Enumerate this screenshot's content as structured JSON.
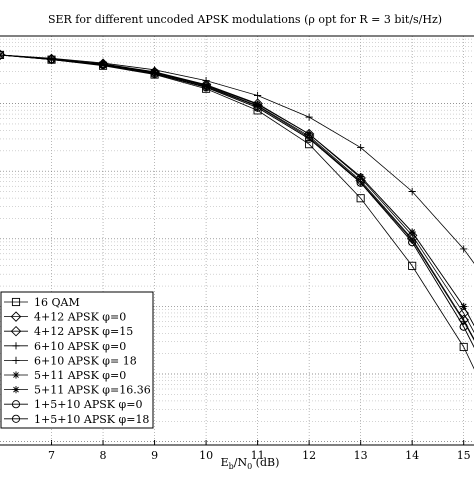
{
  "chart_data": {
    "type": "line",
    "title": "SER for different uncoded APSK modulations (ρ opt for R = 3 bit/s/Hz)",
    "xlabel_main": "E",
    "xlabel_sub1": "b",
    "xlabel_mid": "/N",
    "xlabel_sub2": "0",
    "xlabel_unit": " (dB)",
    "xlim": [
      6,
      15.2
    ],
    "ylim": [
      -6.05,
      0
    ],
    "y_scale": "log",
    "x_ticks": [
      7,
      8,
      9,
      10,
      11,
      12,
      13,
      14,
      15
    ],
    "x_tick_labels": [
      "7",
      "8",
      "9",
      "10",
      "11",
      "12",
      "13",
      "14",
      "15"
    ],
    "grid": true,
    "legend_position": "bottom-left",
    "x": [
      6,
      7,
      8,
      9,
      10,
      11,
      12,
      13,
      14,
      15,
      16
    ],
    "series": [
      {
        "name": "16 QAM",
        "marker": "square",
        "y": [
          -0.28,
          -0.35,
          -0.44,
          -0.57,
          -0.78,
          -1.1,
          -1.6,
          -2.4,
          -3.4,
          -4.6,
          -6.2
        ]
      },
      {
        "name": "4+12 APSK φ=0",
        "marker": "diamond",
        "y": [
          -0.28,
          -0.34,
          -0.41,
          -0.53,
          -0.72,
          -1.0,
          -1.45,
          -2.1,
          -2.95,
          -4.1,
          -5.5
        ]
      },
      {
        "name": "4+12 APSK φ=15",
        "marker": "diamond",
        "y": [
          -0.28,
          -0.34,
          -0.42,
          -0.54,
          -0.74,
          -1.03,
          -1.48,
          -2.14,
          -3.0,
          -4.2,
          -5.6
        ]
      },
      {
        "name": "6+10 APSK φ=0",
        "marker": "plus",
        "y": [
          -0.28,
          -0.34,
          -0.42,
          -0.55,
          -0.75,
          -1.04,
          -1.5,
          -2.16,
          -3.02,
          -4.22,
          -5.6
        ]
      },
      {
        "name": "6+10 APSK φ= 18",
        "marker": "plus",
        "y": [
          -0.28,
          -0.33,
          -0.4,
          -0.5,
          -0.66,
          -0.88,
          -1.2,
          -1.65,
          -2.3,
          -3.15,
          -4.2
        ]
      },
      {
        "name": "5+11 APSK φ=0",
        "marker": "star",
        "y": [
          -0.28,
          -0.34,
          -0.42,
          -0.54,
          -0.73,
          -1.01,
          -1.45,
          -2.08,
          -2.9,
          -4.0,
          -5.4
        ]
      },
      {
        "name": "5+11 APSK φ=16.36",
        "marker": "asterisk",
        "y": [
          -0.28,
          -0.34,
          -0.42,
          -0.54,
          -0.73,
          -1.01,
          -1.45,
          -2.08,
          -2.9,
          -4.0,
          -5.4
        ]
      },
      {
        "name": "1+5+10 APSK φ=0",
        "marker": "circle",
        "y": [
          -0.28,
          -0.35,
          -0.43,
          -0.56,
          -0.76,
          -1.06,
          -1.52,
          -2.17,
          -3.05,
          -4.3,
          -5.8
        ]
      },
      {
        "name": "1+5+10 APSK φ=18",
        "marker": "circle",
        "y": [
          -0.28,
          -0.35,
          -0.43,
          -0.56,
          -0.76,
          -1.06,
          -1.52,
          -2.17,
          -3.05,
          -4.3,
          -5.8
        ]
      }
    ]
  }
}
